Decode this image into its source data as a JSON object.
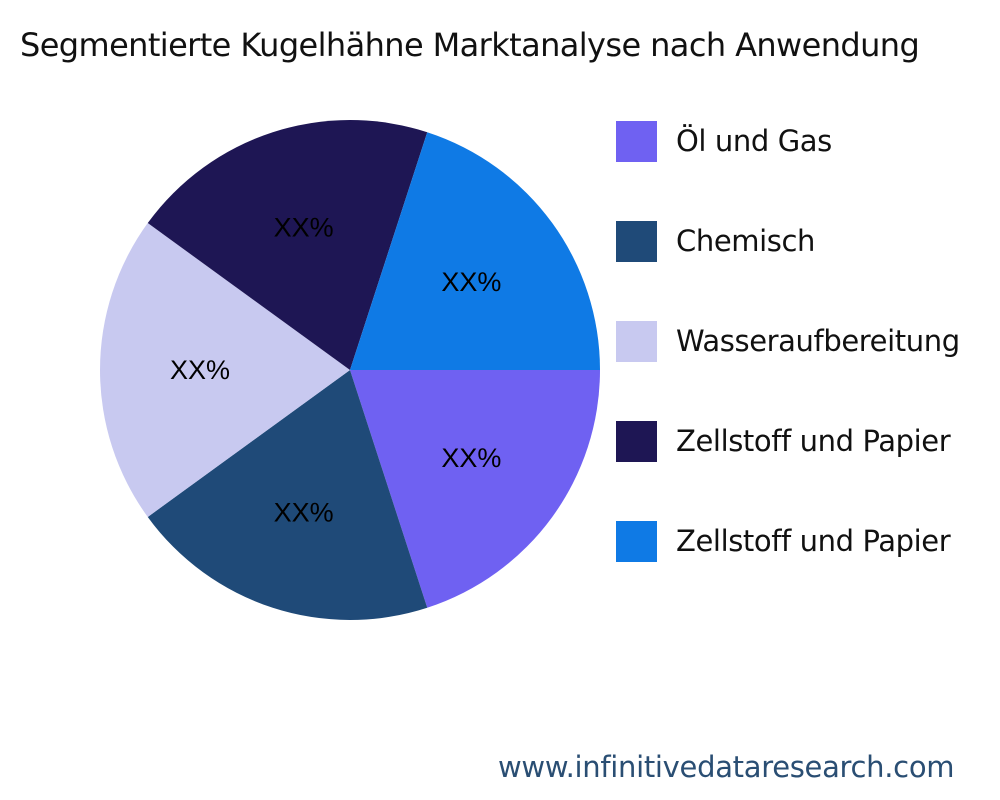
{
  "title": "Segmentierte Kugelhähne Marktanalyse nach Anwendung",
  "footer": "www.infinitivedataresearch.com",
  "legend": [
    {
      "label": "Öl und Gas",
      "color": "#6f61f2"
    },
    {
      "label": "Chemisch",
      "color": "#1f4a78"
    },
    {
      "label": "Wasseraufbereitung",
      "color": "#c8c9f0"
    },
    {
      "label": "Zellstoff und Papier",
      "color": "#1e1654"
    },
    {
      "label": "Zellstoff und Papier",
      "color": "#0f7ae5"
    }
  ],
  "chart_data": {
    "type": "pie",
    "title": "Segmentierte Kugelhähne Marktanalyse nach Anwendung",
    "categories": [
      "Öl und Gas",
      "Chemisch",
      "Wasseraufbereitung",
      "Zellstoff und Papier",
      "Zellstoff und Papier"
    ],
    "values": [
      20,
      20,
      20,
      20,
      20
    ],
    "data_labels": [
      "XX%",
      "XX%",
      "XX%",
      "XX%",
      "XX%"
    ],
    "colors": [
      "#6f61f2",
      "#1f4a78",
      "#c8c9f0",
      "#1e1654",
      "#0f7ae5"
    ],
    "legend_position": "right",
    "start_angle": "3 o'clock",
    "direction": "clockwise"
  }
}
